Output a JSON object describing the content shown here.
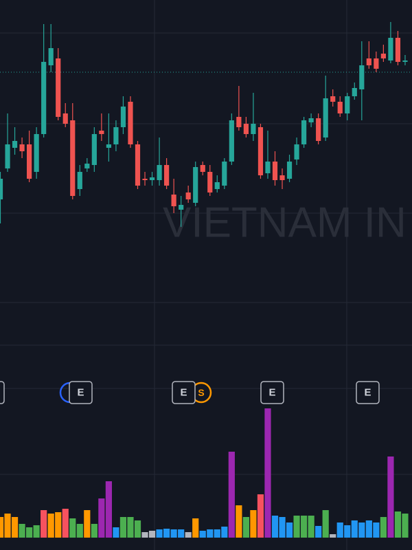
{
  "chart_data": {
    "type": "candlestick",
    "watermark": "VIETNAM IN",
    "open": [
      250,
      295,
      325,
      330,
      330,
      290,
      345,
      445,
      455,
      375,
      365,
      265,
      295,
      300,
      350,
      325,
      330,
      355,
      392,
      330,
      280,
      278,
      278,
      300,
      257,
      235,
      260,
      245,
      300,
      290,
      265,
      270,
      305,
      370,
      360,
      345,
      355,
      288,
      305,
      285,
      280,
      308,
      330,
      362,
      368,
      340,
      400,
      392,
      375,
      400,
      410,
      455,
      455,
      462,
      452,
      485,
      450
    ],
    "high": [
      290,
      375,
      355,
      340,
      350,
      355,
      505,
      505,
      470,
      390,
      390,
      300,
      310,
      355,
      375,
      375,
      365,
      400,
      400,
      335,
      290,
      290,
      340,
      310,
      280,
      255,
      270,
      305,
      305,
      300,
      285,
      310,
      375,
      415,
      370,
      405,
      360,
      350,
      320,
      295,
      315,
      340,
      370,
      375,
      375,
      430,
      410,
      400,
      405,
      420,
      480,
      480,
      465,
      475,
      508,
      495,
      460
    ],
    "low": [
      215,
      290,
      315,
      310,
      275,
      280,
      340,
      435,
      365,
      355,
      250,
      255,
      290,
      290,
      335,
      305,
      320,
      345,
      325,
      265,
      270,
      270,
      270,
      265,
      230,
      210,
      245,
      240,
      285,
      255,
      260,
      265,
      300,
      350,
      340,
      335,
      280,
      280,
      270,
      265,
      275,
      300,
      325,
      355,
      330,
      335,
      385,
      370,
      365,
      395,
      365,
      440,
      435,
      450,
      448,
      445,
      445
    ],
    "close": [
      280,
      330,
      335,
      320,
      280,
      345,
      450,
      470,
      370,
      360,
      255,
      290,
      302,
      345,
      345,
      330,
      355,
      385,
      330,
      270,
      278,
      282,
      300,
      270,
      240,
      242,
      250,
      297,
      290,
      260,
      275,
      305,
      365,
      355,
      345,
      360,
      285,
      305,
      278,
      278,
      305,
      330,
      365,
      368,
      335,
      397,
      392,
      375,
      400,
      412,
      445,
      445,
      440,
      455,
      485,
      450,
      452
    ],
    "up_color": "#26a69a",
    "down_color": "#ef5350",
    "ylim": [
      0,
      540
    ],
    "price_line": 435,
    "volume": {
      "values": [
        30,
        35,
        30,
        20,
        15,
        18,
        40,
        35,
        37,
        42,
        28,
        20,
        40,
        20,
        57,
        82,
        15,
        30,
        30,
        25,
        8,
        10,
        12,
        13,
        12,
        12,
        8,
        28,
        10,
        12,
        12,
        16,
        125,
        47,
        30,
        40,
        63,
        188,
        32,
        30,
        22,
        32,
        32,
        32,
        17,
        40,
        5,
        22,
        18,
        25,
        22,
        25,
        22,
        30,
        118,
        38,
        35
      ],
      "colors": [
        "#ff9800",
        "#ff9800",
        "#ff9800",
        "#4caf50",
        "#4caf50",
        "#4caf50",
        "#f7525f",
        "#ff9800",
        "#ff9800",
        "#f7525f",
        "#4caf50",
        "#4caf50",
        "#ff9800",
        "#4caf50",
        "#9c27b0",
        "#9c27b0",
        "#2196f3",
        "#4caf50",
        "#4caf50",
        "#4caf50",
        "#b2b5be",
        "#b2b5be",
        "#2196f3",
        "#2196f3",
        "#2196f3",
        "#2196f3",
        "#b2b5be",
        "#ff9800",
        "#2196f3",
        "#2196f3",
        "#2196f3",
        "#2196f3",
        "#9c27b0",
        "#ff9800",
        "#4caf50",
        "#ff9800",
        "#f7525f",
        "#9c27b0",
        "#2196f3",
        "#2196f3",
        "#2196f3",
        "#4caf50",
        "#4caf50",
        "#4caf50",
        "#2196f3",
        "#4caf50",
        "#b2b5be",
        "#2196f3",
        "#2196f3",
        "#2196f3",
        "#2196f3",
        "#2196f3",
        "#2196f3",
        "#4caf50",
        "#9c27b0",
        "#4caf50",
        "#4caf50"
      ],
      "ylim": [
        0,
        250
      ]
    },
    "markers": [
      "E",
      "E",
      "E",
      "E",
      "E",
      "S"
    ]
  }
}
